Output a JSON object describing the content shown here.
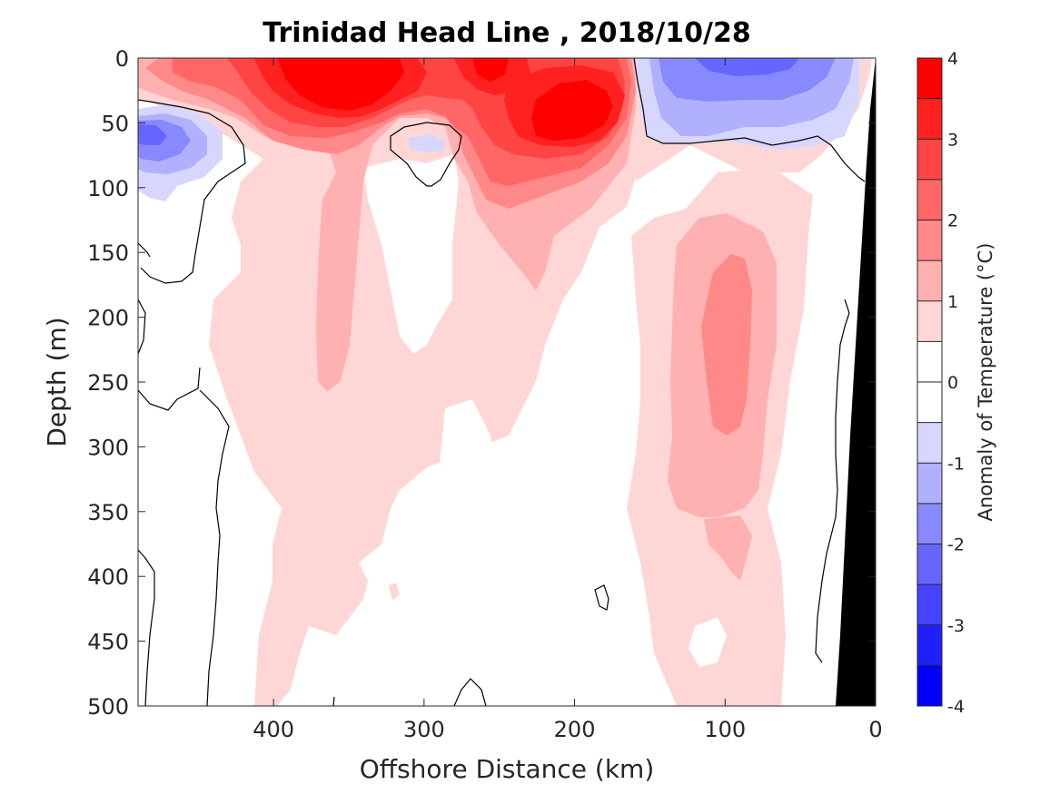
{
  "chart_data": {
    "type": "heatmap",
    "subtype": "filled-contour",
    "title": "Trinidad Head Line , 2018/10/28",
    "xlabel": "Offshore Distance (km)",
    "ylabel": "Depth (m)",
    "x_reversed": true,
    "y_reversed": true,
    "xlim": [
      0,
      490
    ],
    "ylim": [
      0,
      500
    ],
    "x_ticks": [
      {
        "value": 400,
        "label": "400"
      },
      {
        "value": 300,
        "label": "300"
      },
      {
        "value": 200,
        "label": "200"
      },
      {
        "value": 100,
        "label": "100"
      },
      {
        "value": 0,
        "label": "0"
      }
    ],
    "y_ticks": [
      {
        "value": 0,
        "label": "0"
      },
      {
        "value": 50,
        "label": "50"
      },
      {
        "value": 100,
        "label": "100"
      },
      {
        "value": 150,
        "label": "150"
      },
      {
        "value": 200,
        "label": "200"
      },
      {
        "value": 250,
        "label": "250"
      },
      {
        "value": 300,
        "label": "300"
      },
      {
        "value": 350,
        "label": "350"
      },
      {
        "value": 400,
        "label": "400"
      },
      {
        "value": 450,
        "label": "450"
      },
      {
        "value": 500,
        "label": "500"
      }
    ],
    "colorbar": {
      "label": "Anomaly of Temperature (°C)",
      "range": [
        -4,
        4
      ],
      "tick_values": [
        {
          "value": 4,
          "label": "4"
        },
        {
          "value": 3,
          "label": "3"
        },
        {
          "value": 2,
          "label": "2"
        },
        {
          "value": 1,
          "label": "1"
        },
        {
          "value": 0,
          "label": "0"
        },
        {
          "value": -1,
          "label": "-1"
        },
        {
          "value": -2,
          "label": "-2"
        },
        {
          "value": -3,
          "label": "-3"
        },
        {
          "value": -4,
          "label": "-4"
        }
      ],
      "bins": [
        {
          "from": 3.5,
          "to": 4.0,
          "color": "#ff0000"
        },
        {
          "from": 3.0,
          "to": 3.5,
          "color": "#ff2020"
        },
        {
          "from": 2.5,
          "to": 3.0,
          "color": "#ff4444"
        },
        {
          "from": 2.0,
          "to": 2.5,
          "color": "#ff6666"
        },
        {
          "from": 1.5,
          "to": 2.0,
          "color": "#ff8888"
        },
        {
          "from": 1.0,
          "to": 1.5,
          "color": "#ffb0b0"
        },
        {
          "from": 0.5,
          "to": 1.0,
          "color": "#ffd6d6"
        },
        {
          "from": 0.0,
          "to": 0.5,
          "color": "#ffffff"
        },
        {
          "from": -0.5,
          "to": 0.0,
          "color": "#ffffff"
        },
        {
          "from": -1.0,
          "to": -0.5,
          "color": "#d6d6ff"
        },
        {
          "from": -1.5,
          "to": -1.0,
          "color": "#b0b0ff"
        },
        {
          "from": -2.0,
          "to": -1.5,
          "color": "#8888ff"
        },
        {
          "from": -2.5,
          "to": -2.0,
          "color": "#6666ff"
        },
        {
          "from": -3.0,
          "to": -2.5,
          "color": "#4444ff"
        },
        {
          "from": -3.5,
          "to": -3.0,
          "color": "#2020ff"
        },
        {
          "from": -4.0,
          "to": -3.5,
          "color": "#0000ff"
        }
      ]
    },
    "features": [
      {
        "name": "warm core",
        "x_range_km": [
          330,
          390
        ],
        "depth_range_m": [
          0,
          55
        ],
        "anomaly": 3.5
      },
      {
        "name": "warm core",
        "x_range_km": [
          180,
          230
        ],
        "depth_range_m": [
          25,
          65
        ],
        "anomaly": 3.5
      },
      {
        "name": "cold patch",
        "x_range_km": [
          40,
          140
        ],
        "depth_range_m": [
          0,
          65
        ],
        "anomaly": -1.5
      },
      {
        "name": "cold patch",
        "x_range_km": [
          450,
          490
        ],
        "depth_range_m": [
          40,
          110
        ],
        "anomaly": -2
      },
      {
        "name": "warm column",
        "x_range_km": [
          85,
          120
        ],
        "depth_range_m": [
          150,
          290
        ],
        "anomaly": 1.8
      },
      {
        "name": "bathymetry",
        "x_range_km": [
          0,
          30
        ],
        "depth_range_m": [
          0,
          500
        ],
        "color": "#000000"
      }
    ]
  }
}
